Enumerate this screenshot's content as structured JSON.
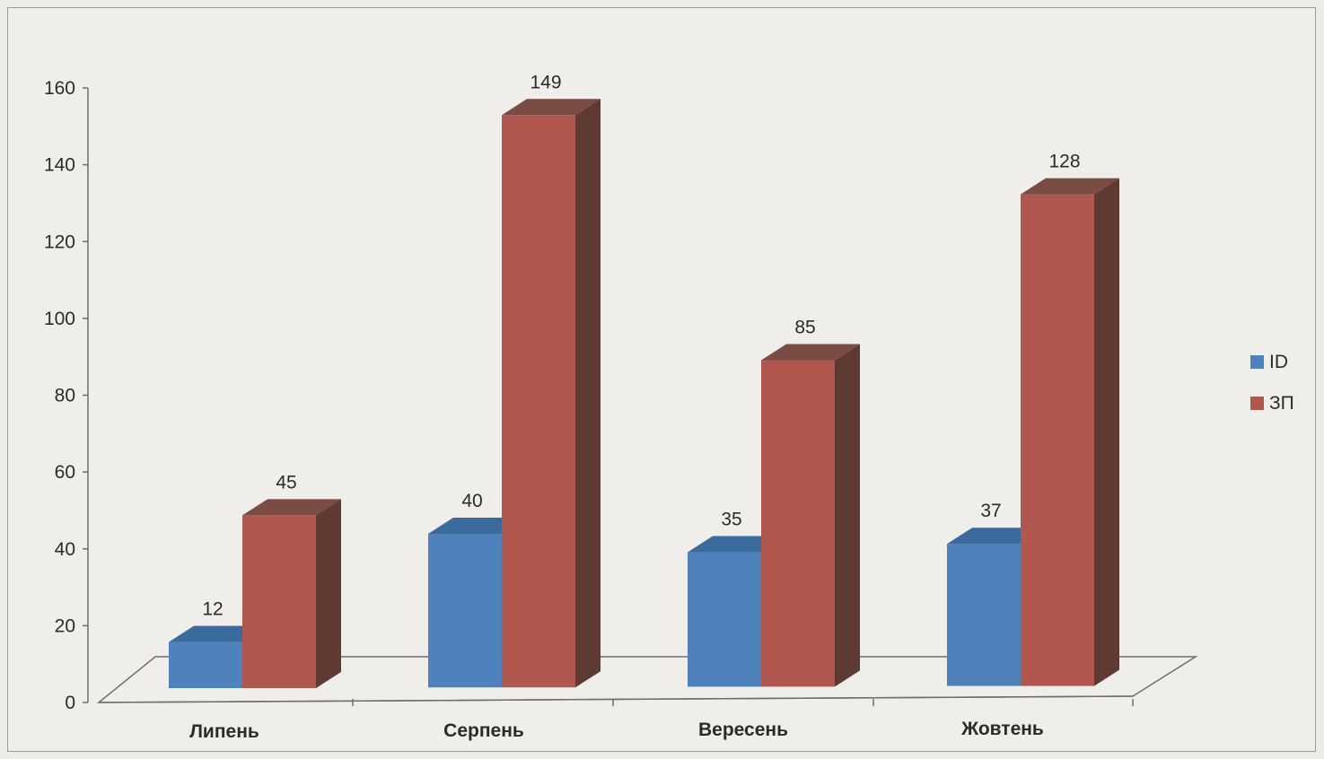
{
  "chart_data": {
    "type": "bar",
    "categories": [
      "Липень",
      "Серпень",
      "Вересень",
      "Жовтень"
    ],
    "series": [
      {
        "name": "ID",
        "values": [
          12,
          40,
          35,
          37
        ],
        "labels": [
          "12",
          "40",
          "35",
          "37"
        ]
      },
      {
        "name": "ЗП",
        "values": [
          45,
          149,
          85,
          128
        ],
        "labels": [
          "45",
          "149",
          "85",
          "128"
        ]
      }
    ],
    "yticks": [
      "0",
      "20",
      "40",
      "60",
      "80",
      "100",
      "120",
      "140",
      "160"
    ],
    "ylim": [
      0,
      160
    ],
    "grid": false,
    "legend": "right",
    "style": "3d-clustered-columns",
    "colors": {
      "ID": "#4f81bd",
      "ID_top": "#3b6a9c",
      "ID_side": "#2f5a88",
      "ЗП": "#b0574f",
      "ЗП_top": "#7b4c43",
      "ЗП_side": "#5e3a33"
    }
  }
}
